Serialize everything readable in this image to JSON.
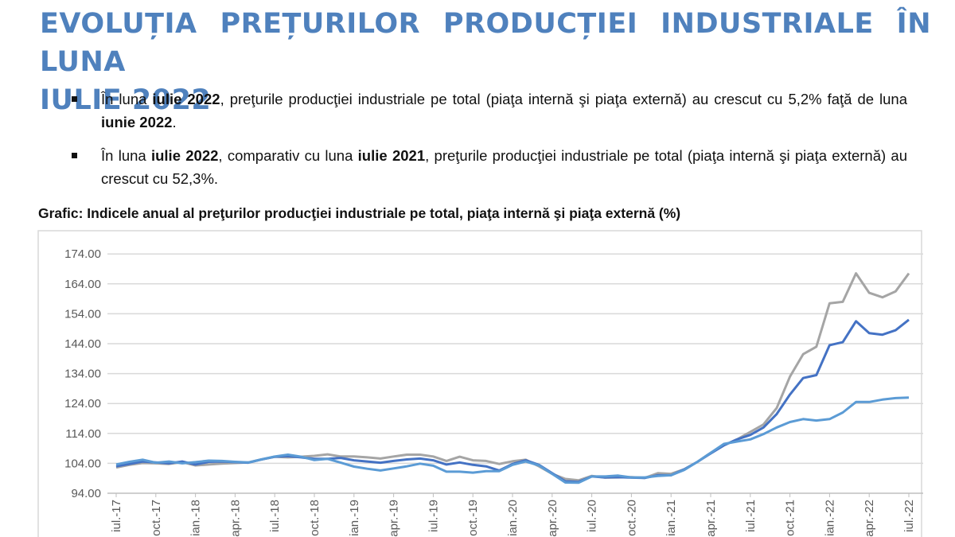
{
  "title": {
    "line1": "EVOLUȚIA PREȚURILOR PRODUCȚIEI INDUSTRIALE ÎN LUNA",
    "line2": "IULIE 2022"
  },
  "bullets": [
    {
      "segments": [
        {
          "text": "În luna ",
          "bold": false
        },
        {
          "text": "iulie 2022",
          "bold": true
        },
        {
          "text": ", preţurile producţiei industriale pe total (piaţa internă şi piaţa externă) au crescut cu 5,2% faţă de luna ",
          "bold": false
        },
        {
          "text": "iunie 2022",
          "bold": true
        },
        {
          "text": ".",
          "bold": false
        }
      ]
    },
    {
      "segments": [
        {
          "text": "În luna ",
          "bold": false
        },
        {
          "text": "iulie 2022",
          "bold": true
        },
        {
          "text": ", comparativ cu luna ",
          "bold": false
        },
        {
          "text": "iulie 2021",
          "bold": true
        },
        {
          "text": ", preţurile producţiei industriale pe total (piaţa internă şi piaţa externă) au crescut cu 52,3%.",
          "bold": false
        }
      ]
    }
  ],
  "chart_data": {
    "type": "line",
    "title": "Grafic: Indicele anual al preţurilor producţiei industriale pe total, piaţa internă şi piaţa externă (%)",
    "xlabel": "",
    "ylabel": "",
    "ylim": [
      94,
      174
    ],
    "yticks": [
      "174.00",
      "164.00",
      "154.00",
      "144.00",
      "134.00",
      "124.00",
      "114.00",
      "104.00",
      "94.00"
    ],
    "yticks_values": [
      174,
      164,
      154,
      144,
      134,
      124,
      114,
      104,
      94
    ],
    "x_start": "iul.-17",
    "x_tick_labels": [
      "iul.-17",
      "oct.-17",
      "ian.-18",
      "apr.-18",
      "iul.-18",
      "oct.-18",
      "ian.-19",
      "apr.-19",
      "iul.-19",
      "oct.-19",
      "ian.-20",
      "apr.-20",
      "iul.-20",
      "oct.-20",
      "ian.-21",
      "apr.-21",
      "iul.-21",
      "oct.-21",
      "ian.-22",
      "apr.-22",
      "iul.-22"
    ],
    "grid": true,
    "series": [
      {
        "color": "#a5a5a5",
        "values": [
          102.6,
          103.5,
          104.1,
          104,
          103.8,
          104.4,
          103.3,
          103.6,
          103.9,
          104.1,
          104.3,
          105.3,
          106.2,
          106,
          106.2,
          106.5,
          107,
          106.3,
          106.3,
          106,
          105.6,
          106.3,
          106.9,
          106.9,
          106.3,
          104.8,
          106.2,
          105,
          104.8,
          103.8,
          104.7,
          105.2,
          103,
          100.5,
          98.8,
          98.3,
          99.8,
          99.2,
          99.3,
          99.4,
          99.1,
          100.7,
          100.5,
          102,
          104.5,
          107.5,
          110,
          112,
          114.5,
          117,
          122.5,
          133,
          140.5,
          143,
          157.5,
          158,
          167.5,
          161,
          159.5,
          161.5,
          167.5
        ]
      },
      {
        "color": "#4472c4",
        "values": [
          103,
          103.8,
          104.6,
          104.3,
          104,
          104.6,
          103.6,
          104.5,
          104.6,
          104.4,
          104.2,
          105.3,
          106.2,
          106.4,
          106,
          105.5,
          105.5,
          105.8,
          105,
          104.6,
          104.2,
          104.8,
          105.3,
          105.6,
          105,
          103.6,
          104.3,
          103.5,
          103,
          101.6,
          103.8,
          105,
          103.5,
          100.7,
          98,
          97.8,
          99.6,
          99.3,
          99.4,
          99.2,
          99.1,
          100,
          100,
          102,
          104.5,
          107.3,
          110,
          112,
          113.5,
          116,
          120.5,
          127,
          132.5,
          133.5,
          143.5,
          144.5,
          151.5,
          147.5,
          147,
          148.5,
          152
        ]
      },
      {
        "color": "#5b9bd5",
        "values": [
          103.6,
          104.5,
          105.2,
          104.2,
          104.6,
          104,
          104.4,
          104.9,
          104.8,
          104.5,
          104.3,
          105.3,
          106.3,
          106.9,
          106.2,
          105.1,
          105.5,
          104.2,
          102.9,
          102.2,
          101.6,
          102.3,
          103,
          103.9,
          103.2,
          101.2,
          101.2,
          100.9,
          101.4,
          101.4,
          103.5,
          104.6,
          103.3,
          100.5,
          97.6,
          97.5,
          99.6,
          99.6,
          99.9,
          99.3,
          99.3,
          99.8,
          100,
          101.8,
          104.5,
          107.5,
          110.5,
          111.3,
          112,
          113.8,
          116,
          117.8,
          118.8,
          118.3,
          118.8,
          121,
          124.5,
          124.5,
          125.3,
          125.8,
          126
        ]
      }
    ]
  }
}
